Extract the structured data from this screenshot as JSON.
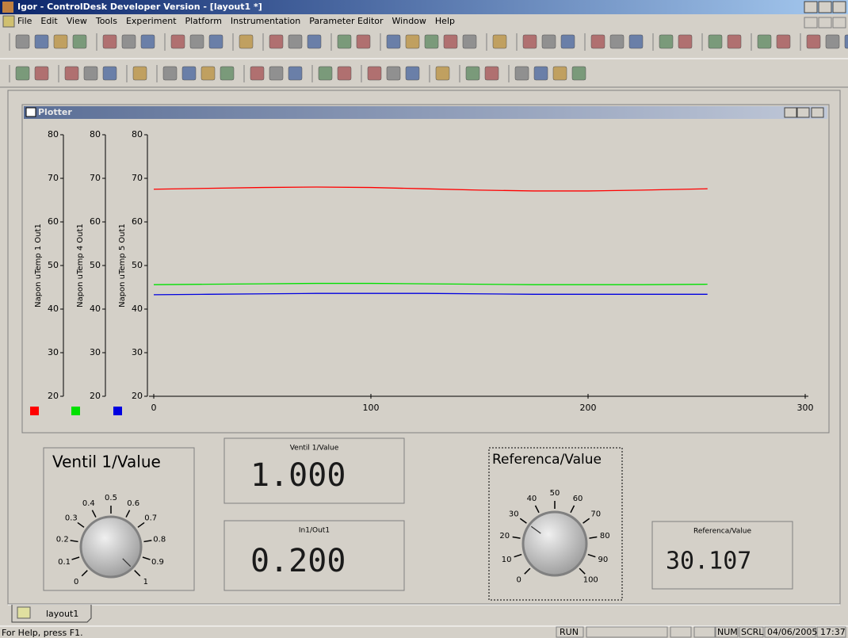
{
  "window": {
    "title": "Igor - ControlDesk Developer Version - [layout1 *]"
  },
  "menu": [
    "File",
    "Edit",
    "View",
    "Tools",
    "Experiment",
    "Platform",
    "Instrumentation",
    "Parameter Editor",
    "Window",
    "Help"
  ],
  "plotter": {
    "title": "Plotter",
    "chart_data": {
      "type": "line",
      "x": [
        0,
        25,
        50,
        75,
        100,
        125,
        150,
        175,
        200,
        225,
        255
      ],
      "series": [
        {
          "name": "Napon uTemp 1 Out1",
          "color": "#ff0000",
          "values": [
            67.5,
            67.7,
            67.9,
            68.0,
            67.9,
            67.6,
            67.3,
            67.1,
            67.1,
            67.3,
            67.6
          ]
        },
        {
          "name": "Napon uTemp 4 Out1",
          "color": "#00e000",
          "values": [
            45.6,
            45.7,
            45.8,
            45.9,
            45.9,
            45.8,
            45.7,
            45.6,
            45.6,
            45.6,
            45.7
          ]
        },
        {
          "name": "Napon uTemp 5 Out1",
          "color": "#0000e0",
          "values": [
            43.3,
            43.4,
            43.5,
            43.6,
            43.6,
            43.6,
            43.5,
            43.4,
            43.4,
            43.4,
            43.4
          ]
        }
      ],
      "xlim": [
        0,
        300
      ],
      "xticks": [
        0,
        100,
        200,
        300
      ],
      "ylim": [
        20,
        80
      ],
      "yticks": [
        20,
        30,
        40,
        50,
        60,
        70,
        80
      ]
    }
  },
  "knobs": [
    {
      "title": "Ventil 1/Value",
      "ticks": [
        0,
        0.1,
        0.2,
        0.3,
        0.4,
        0.5,
        0.6,
        0.7,
        0.8,
        0.9,
        1
      ]
    },
    {
      "title": "Referenca/Value",
      "ticks": [
        0,
        10,
        20,
        30,
        40,
        50,
        60,
        70,
        80,
        90,
        100
      ]
    }
  ],
  "displays": [
    {
      "title": "Ventil 1/Value",
      "value": 1,
      "value_label": "1.000"
    },
    {
      "title": "In1/Out1",
      "value": 0.2,
      "value_label": "0.200"
    },
    {
      "title": "Referenca/Value",
      "value": 30.107,
      "value_label": "30.107"
    }
  ],
  "tab": "layout1",
  "status": {
    "help": "For Help, press F1.",
    "mode": "RUN",
    "num": "NUM",
    "scrl": "SCRL",
    "date": "04/06/2005",
    "time": "17:37"
  }
}
